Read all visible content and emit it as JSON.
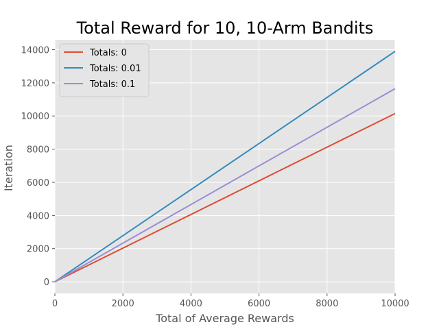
{
  "chart_data": {
    "type": "line",
    "title": "Total Reward for 10, 10-Arm Bandits",
    "xlabel": "Total of Average Rewards",
    "ylabel": "Iteration",
    "xlim": [
      0,
      10000
    ],
    "ylim": [
      -700,
      14600
    ],
    "xticks": [
      0,
      2000,
      4000,
      6000,
      8000,
      10000
    ],
    "yticks": [
      0,
      2000,
      4000,
      6000,
      8000,
      10000,
      12000,
      14000
    ],
    "grid": true,
    "legend_position": "top-left",
    "series": [
      {
        "name": "Totals: 0",
        "color": "#E24A33",
        "x": [
          0,
          10000
        ],
        "y": [
          0,
          10150
        ]
      },
      {
        "name": "Totals: 0.01",
        "color": "#348ABD",
        "x": [
          0,
          10000
        ],
        "y": [
          0,
          13900
        ]
      },
      {
        "name": "Totals: 0.1",
        "color": "#988ED5",
        "x": [
          0,
          10000
        ],
        "y": [
          0,
          11650
        ]
      }
    ],
    "colors": {
      "plot_background": "#E5E5E5",
      "grid": "#FFFFFF"
    }
  }
}
